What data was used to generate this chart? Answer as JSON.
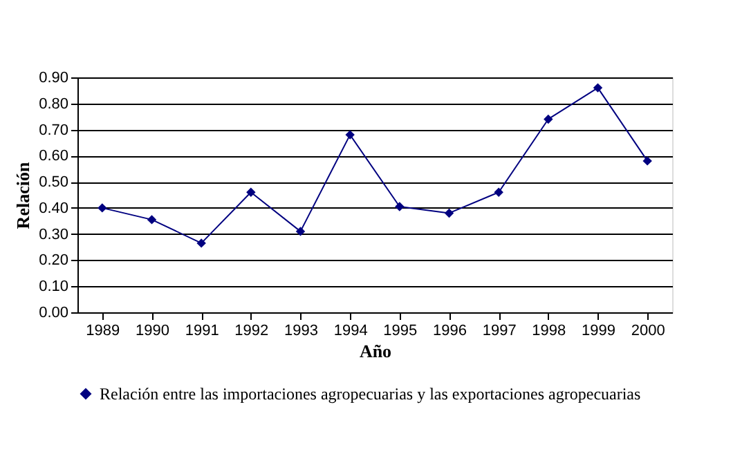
{
  "chart_data": {
    "type": "line",
    "xlabel": "Año",
    "ylabel": "Relación",
    "categories": [
      "1989",
      "1990",
      "1991",
      "1992",
      "1993",
      "1994",
      "1995",
      "1996",
      "1997",
      "1998",
      "1999",
      "2000"
    ],
    "series": [
      {
        "name": "Relación entre las importaciones agropecuarias y las exportaciones agropecuarias",
        "color": "#000080",
        "values": [
          0.4,
          0.355,
          0.265,
          0.46,
          0.31,
          0.68,
          0.405,
          0.38,
          0.46,
          0.74,
          0.86,
          0.58
        ]
      }
    ],
    "ylim": [
      0,
      0.9
    ],
    "yticks": [
      {
        "value": 0,
        "label": "0.00"
      },
      {
        "value": 0.1,
        "label": "0.10"
      },
      {
        "value": 0.2,
        "label": "0.20"
      },
      {
        "value": 0.3,
        "label": "0.30"
      },
      {
        "value": 0.4,
        "label": "0.40"
      },
      {
        "value": 0.5,
        "label": "0.50"
      },
      {
        "value": 0.6,
        "label": "0.60"
      },
      {
        "value": 0.7,
        "label": "0.70"
      },
      {
        "value": 0.8,
        "label": "0.80"
      },
      {
        "value": 0.9,
        "label": "0.90"
      }
    ],
    "grid": "y",
    "legend": "bottom",
    "marker": "diamond",
    "line_style": "solid"
  }
}
